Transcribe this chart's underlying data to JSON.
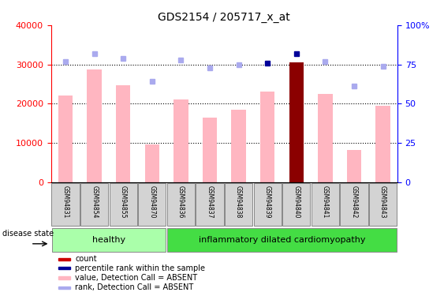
{
  "title": "GDS2154 / 205717_x_at",
  "samples": [
    "GSM94831",
    "GSM94854",
    "GSM94855",
    "GSM94870",
    "GSM94836",
    "GSM94837",
    "GSM94838",
    "GSM94839",
    "GSM94840",
    "GSM94841",
    "GSM94842",
    "GSM94843"
  ],
  "values": [
    22000,
    28700,
    24700,
    9500,
    21000,
    16500,
    18500,
    23000,
    30500,
    22500,
    8200,
    19500
  ],
  "ranks": [
    77,
    82,
    79,
    64,
    78,
    73,
    75,
    76,
    82,
    77,
    61,
    74
  ],
  "highlight_value": [
    false,
    false,
    false,
    false,
    false,
    false,
    false,
    false,
    true,
    false,
    false,
    false
  ],
  "highlight_rank": [
    false,
    false,
    false,
    false,
    false,
    false,
    false,
    true,
    true,
    false,
    false,
    false
  ],
  "ylim_left": [
    0,
    40000
  ],
  "ylim_right": [
    0,
    100
  ],
  "yticks_left": [
    0,
    10000,
    20000,
    30000,
    40000
  ],
  "yticks_right": [
    0,
    25,
    50,
    75,
    100
  ],
  "yticklabels_right": [
    "0",
    "25",
    "50",
    "75",
    "100%"
  ],
  "bar_color_normal": "#FFB6C1",
  "bar_color_highlight": "#8B0000",
  "rank_color_normal": "#AAAAEE",
  "rank_color_highlight": "#000099",
  "healthy_count": 4,
  "healthy_color": "#AAFFAA",
  "inflam_color": "#44DD44",
  "legend_items": [
    {
      "color": "#CC0000",
      "label": "count"
    },
    {
      "color": "#000099",
      "label": "percentile rank within the sample"
    },
    {
      "color": "#FFB6C1",
      "label": "value, Detection Call = ABSENT"
    },
    {
      "color": "#AAAAEE",
      "label": "rank, Detection Call = ABSENT"
    }
  ]
}
